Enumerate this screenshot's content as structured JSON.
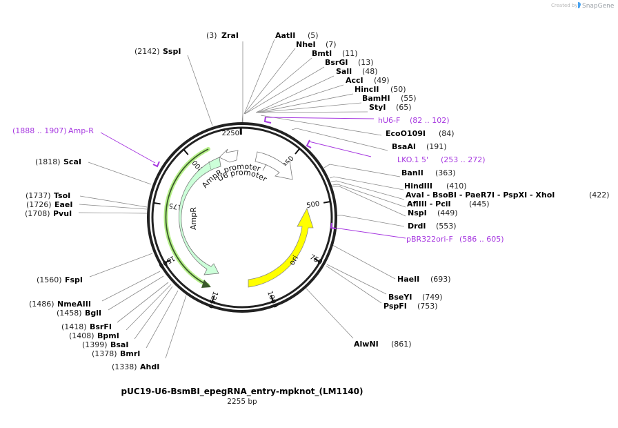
{
  "credit": {
    "text": "Created by",
    "brand": "SnapGene"
  },
  "plasmid": {
    "name": "pUC19-U6-BsmBI_epegRNA_entry-mpknot_(LM1140)",
    "length_label": "2255 bp",
    "length": 2255
  },
  "colors": {
    "backbone": "#222222",
    "primer": "#a637e0",
    "ampr_fill": "#ccffd9",
    "ampr_glow": "#b6f08a",
    "ori_fill": "#ffff00",
    "promoter_fill": "#ffffff"
  },
  "ticks": [
    {
      "label": "250",
      "pos": 250
    },
    {
      "label": "500",
      "pos": 500
    },
    {
      "label": "750",
      "pos": 750
    },
    {
      "label": "1000",
      "pos": 1000
    },
    {
      "label": "1250",
      "pos": 1250
    },
    {
      "label": "1500",
      "pos": 1500
    },
    {
      "label": "1750",
      "pos": 1750
    },
    {
      "label": "2000",
      "pos": 2000
    },
    {
      "label": "2250",
      "pos": 2250
    }
  ],
  "features": {
    "ampr": {
      "label": "AmpR"
    },
    "ampr_promoter": {
      "label": "AmpR promoter"
    },
    "u6_promoter": {
      "label": "U6 promoter"
    },
    "ori": {
      "label": "ori"
    }
  },
  "primers": [
    {
      "name": "hU6-F",
      "range": "(82 .. 102)"
    },
    {
      "name": "LKO.1 5'",
      "range": "(253 .. 272)"
    },
    {
      "name": "pBR322ori-F",
      "range": "(586 .. 605)"
    },
    {
      "name": "Amp-R",
      "range": "(1888 .. 1907)"
    }
  ],
  "enzymes_right": [
    {
      "name": "AatII",
      "pos": "(5)"
    },
    {
      "name": "NheI",
      "pos": "(7)"
    },
    {
      "name": "BmtI",
      "pos": "(11)"
    },
    {
      "name": "BsrGI",
      "pos": "(13)"
    },
    {
      "name": "SalI",
      "pos": "(48)"
    },
    {
      "name": "AccI",
      "pos": "(49)"
    },
    {
      "name": "HincII",
      "pos": "(50)"
    },
    {
      "name": "BamHI",
      "pos": "(55)"
    },
    {
      "name": "StyI",
      "pos": "(65)"
    },
    {
      "name": "EcoO109I",
      "pos": "(84)"
    },
    {
      "name": "BsaAI",
      "pos": "(191)"
    },
    {
      "name": "BanII",
      "pos": "(363)"
    },
    {
      "name": "HindIII",
      "pos": "(410)"
    },
    {
      "name": "AvaI - BsoBI - PaeR7I - PspXI - XhoI",
      "pos": "(422)"
    },
    {
      "name": "AflIII - PciI",
      "pos": "(445)"
    },
    {
      "name": "NspI",
      "pos": "(449)"
    },
    {
      "name": "DrdI",
      "pos": "(553)"
    },
    {
      "name": "HaeII",
      "pos": "(693)"
    },
    {
      "name": "BseYI",
      "pos": "(749)"
    },
    {
      "name": "PspFI",
      "pos": "(753)"
    },
    {
      "name": "AlwNI",
      "pos": "(861)"
    }
  ],
  "enzymes_left": [
    {
      "name": "ZraI",
      "pos": "(3)"
    },
    {
      "name": "SspI",
      "pos": "(2142)"
    },
    {
      "name": "ScaI",
      "pos": "(1818)"
    },
    {
      "name": "TsoI",
      "pos": "(1737)"
    },
    {
      "name": "EaeI",
      "pos": "(1726)"
    },
    {
      "name": "PvuI",
      "pos": "(1708)"
    },
    {
      "name": "FspI",
      "pos": "(1560)"
    },
    {
      "name": "NmeAIII",
      "pos": "(1486)"
    },
    {
      "name": "BglI",
      "pos": "(1458)"
    },
    {
      "name": "BsrFI",
      "pos": "(1418)"
    },
    {
      "name": "BpmI",
      "pos": "(1408)"
    },
    {
      "name": "BsaI",
      "pos": "(1399)"
    },
    {
      "name": "BmrI",
      "pos": "(1378)"
    },
    {
      "name": "AhdI",
      "pos": "(1338)"
    }
  ]
}
